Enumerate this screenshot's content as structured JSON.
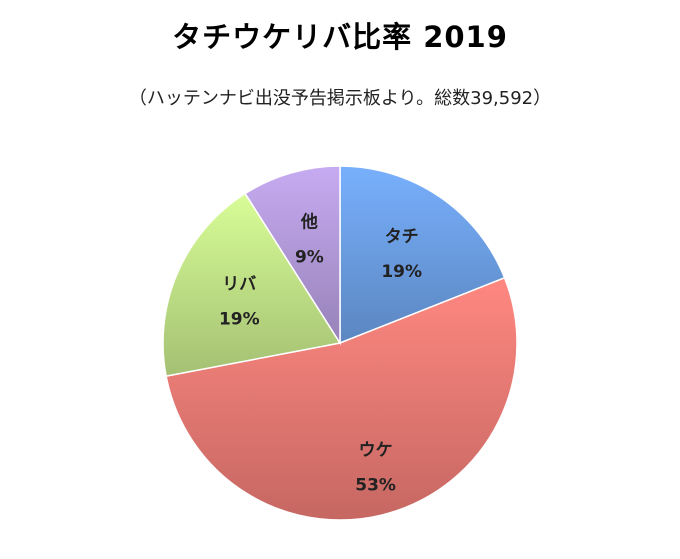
{
  "chart_data": {
    "type": "pie",
    "title": "タチウケリバ比率 2019",
    "subtitle": "（ハッテンナビ出没予告掲示板より。総数39,592）",
    "slices": [
      {
        "name": "タチ",
        "value": 19,
        "label": "19%",
        "color": "#6fa3ea"
      },
      {
        "name": "ウケ",
        "value": 53,
        "label": "53%",
        "color": "#f27e77"
      },
      {
        "name": "リバ",
        "value": 19,
        "label": "19%",
        "color": "#c8ea8c"
      },
      {
        "name": "他",
        "value": 9,
        "label": "9%",
        "color": "#b89ee0"
      }
    ]
  }
}
